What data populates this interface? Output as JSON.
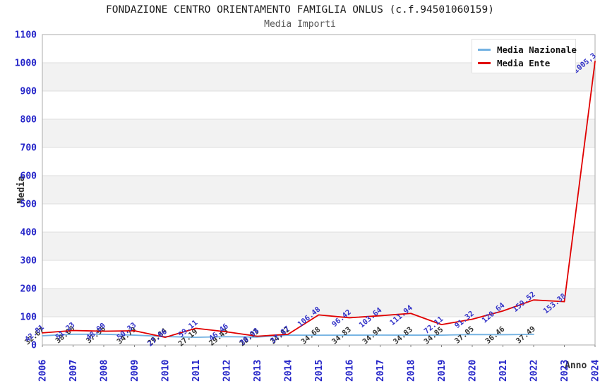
{
  "header": {
    "title": "FONDAZIONE CENTRO ORIENTAMENTO FAMIGLIA ONLUS (c.f.94501060159)",
    "subtitle": "Media Importi"
  },
  "legend": {
    "items": [
      {
        "label": "Media Nazionale",
        "color": "#73b2e2"
      },
      {
        "label": "Media Ente",
        "color": "#e00000"
      }
    ]
  },
  "axes": {
    "ylabel": "Media",
    "xlabel": "Anno",
    "y_ticks": [
      "0",
      "100",
      "200",
      "300",
      "400",
      "500",
      "600",
      "700",
      "800",
      "900",
      "1000",
      "1100"
    ],
    "tick_color": "#2424c8"
  },
  "chart_data": {
    "type": "line",
    "title": "FONDAZIONE CENTRO ORIENTAMENTO FAMIGLIA ONLUS (c.f.94501060159)",
    "subtitle": "Media Importi",
    "xlabel": "Anno",
    "ylabel": "Media",
    "ylim": [
      0,
      1100
    ],
    "y_tick_step": 100,
    "band_color": "#f2f2f2",
    "grid": "horizontal",
    "legend_position": "top-right",
    "x": [
      "2006",
      "2007",
      "2008",
      "2009",
      "2010",
      "2011",
      "2012",
      "2013",
      "2014",
      "2015",
      "2016",
      "2017",
      "2018",
      "2019",
      "2020",
      "2021",
      "2022",
      "2023",
      "2024"
    ],
    "series": [
      {
        "name": "Media Nazionale",
        "color": "#73b2e2",
        "label_color": "#333333",
        "values": [
          32.67,
          38.0,
          37.98,
          34.79,
          29.84,
          27.19,
          29.43,
          28.03,
          34.82,
          34.68,
          34.83,
          34.94,
          34.83,
          34.85,
          37.05,
          36.46,
          37.49,
          null,
          null
        ],
        "labels": [
          "32.67",
          "38.00",
          "37.98",
          "34.79",
          "29.84",
          "27.19",
          "29.43",
          "28.03",
          "34.82",
          "34.68",
          "34.83",
          "34.94",
          "34.83",
          "34.85",
          "37.05",
          "36.46",
          "37.49",
          null,
          null
        ]
      },
      {
        "name": "Media Ente",
        "color": "#e00000",
        "label_color": "#3535c8",
        "values": [
          42.81,
          51.23,
          48.8,
          50.33,
          27.06,
          59.11,
          46.46,
          30.98,
          37.87,
          106.48,
          96.42,
          103.64,
          111.94,
          72.11,
          91.32,
          120.64,
          159.52,
          153.38,
          1005.3
        ],
        "labels": [
          "42.81",
          "51.23",
          "48.80",
          "50.33",
          "27.06",
          "59.11",
          "46.46",
          "30.98",
          "37.87",
          "106.48",
          "96.42",
          "103.64",
          "111.94",
          "72.11",
          "91.32",
          "120.64",
          "159.52",
          "153.38",
          "1005,3"
        ]
      }
    ]
  }
}
